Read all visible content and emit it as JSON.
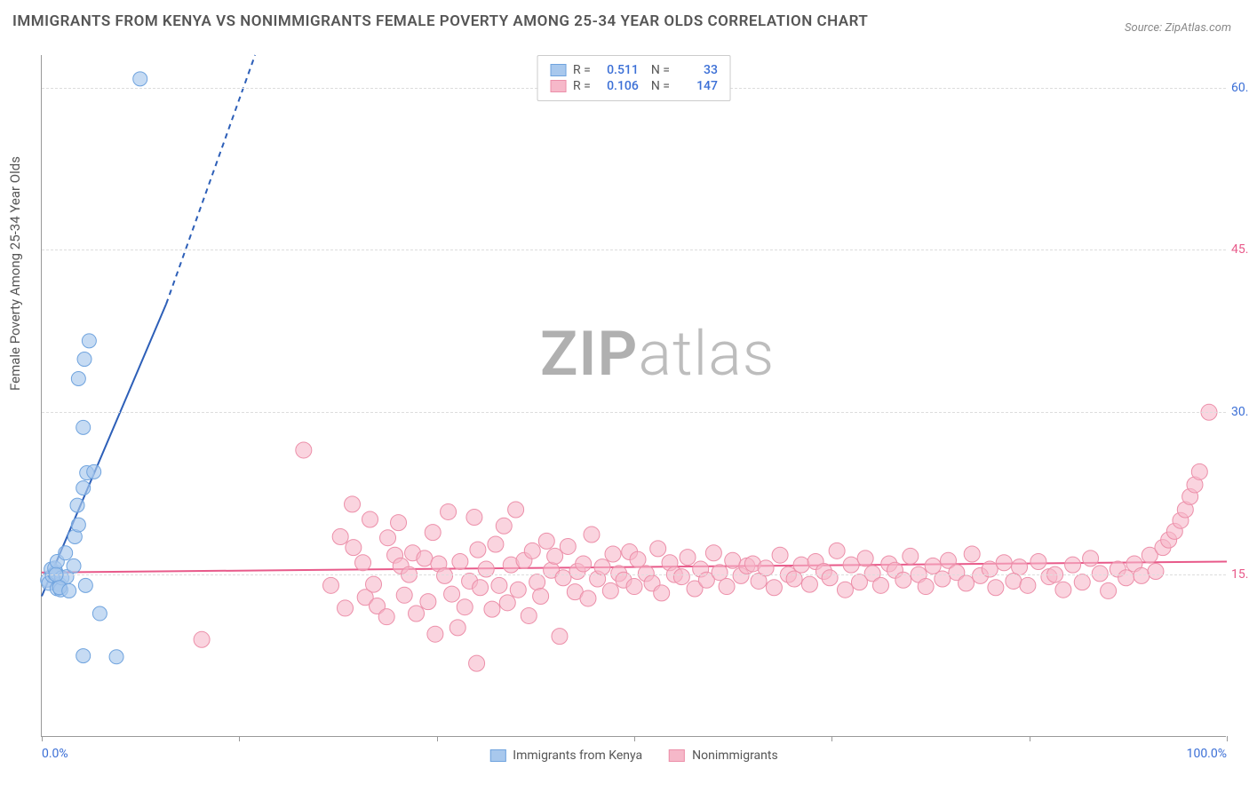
{
  "title": "IMMIGRANTS FROM KENYA VS NONIMMIGRANTS FEMALE POVERTY AMONG 25-34 YEAR OLDS CORRELATION CHART",
  "source_label": "Source:",
  "source_name": "ZipAtlas.com",
  "ylabel": "Female Poverty Among 25-34 Year Olds",
  "watermark_part1": "ZIP",
  "watermark_part2": "atlas",
  "chart": {
    "type": "scatter",
    "xlim": [
      0,
      100
    ],
    "ylim": [
      0,
      63
    ],
    "x_ticks": [
      0,
      16.67,
      33.33,
      50,
      66.67,
      83.33,
      100
    ],
    "x_tick_labels": {
      "0": "0.0%",
      "100": "100.0%"
    },
    "y_ticks": [
      15,
      30,
      45,
      60
    ],
    "y_tick_labels": [
      "15.0%",
      "30.0%",
      "45.0%",
      "60.0%"
    ],
    "grid_color": "#dddddd",
    "background": "#ffffff",
    "axis_color": "#999999",
    "xlabel_color": "#3b6fd6",
    "ylabel_blue": "#3b6fd6",
    "ylabel_pink": "#e85a8a"
  },
  "series": [
    {
      "name": "Immigrants from Kenya",
      "color_fill": "#a8c8ed",
      "color_stroke": "#6fa3de",
      "marker_r": 8,
      "marker_opacity": 0.65,
      "R": "0.511",
      "N": "33",
      "trend": {
        "x1": 0,
        "y1": 13,
        "x2": 10.5,
        "y2": 40,
        "solid_until_x": 10.5,
        "dash_to_x": 18,
        "dash_to_y": 63,
        "color": "#2d5fb8",
        "width": 2
      },
      "points": [
        [
          0.5,
          14.5
        ],
        [
          0.6,
          14.2
        ],
        [
          0.9,
          14.9
        ],
        [
          1.1,
          15.1
        ],
        [
          0.8,
          15.5
        ],
        [
          1.2,
          15.2
        ],
        [
          1.1,
          15.6
        ],
        [
          1.5,
          14.1
        ],
        [
          1.3,
          16.2
        ],
        [
          1.3,
          13.7
        ],
        [
          1.6,
          13.6
        ],
        [
          1.7,
          14.7
        ],
        [
          2.1,
          14.8
        ],
        [
          1.2,
          15.0
        ],
        [
          1.5,
          13.8
        ],
        [
          2.3,
          13.5
        ],
        [
          2.0,
          17.0
        ],
        [
          2.7,
          15.8
        ],
        [
          2.8,
          18.5
        ],
        [
          3.1,
          19.6
        ],
        [
          3.0,
          21.4
        ],
        [
          3.7,
          14.0
        ],
        [
          3.5,
          23.0
        ],
        [
          3.5,
          28.6
        ],
        [
          3.8,
          24.4
        ],
        [
          3.1,
          33.1
        ],
        [
          3.6,
          34.9
        ],
        [
          4.0,
          36.6
        ],
        [
          4.4,
          24.5
        ],
        [
          4.9,
          11.4
        ],
        [
          6.3,
          7.4
        ],
        [
          3.5,
          7.5
        ],
        [
          8.3,
          60.8
        ]
      ]
    },
    {
      "name": "Nonimmigrants",
      "color_fill": "#f6b8c9",
      "color_stroke": "#ec8fa9",
      "marker_r": 9,
      "marker_opacity": 0.6,
      "R": "0.106",
      "N": "147",
      "trend": {
        "x1": 0,
        "y1": 15.2,
        "x2": 100,
        "y2": 16.2,
        "color": "#e85a8a",
        "width": 2
      },
      "points": [
        [
          13.5,
          9.0
        ],
        [
          22.1,
          26.5
        ],
        [
          24.4,
          14.0
        ],
        [
          25.2,
          18.5
        ],
        [
          25.6,
          11.9
        ],
        [
          26.2,
          21.5
        ],
        [
          26.3,
          17.5
        ],
        [
          27.1,
          16.1
        ],
        [
          27.3,
          12.9
        ],
        [
          27.7,
          20.1
        ],
        [
          28.0,
          14.1
        ],
        [
          28.3,
          12.1
        ],
        [
          29.1,
          11.1
        ],
        [
          29.2,
          18.4
        ],
        [
          29.8,
          16.8
        ],
        [
          30.1,
          19.8
        ],
        [
          30.3,
          15.8
        ],
        [
          30.6,
          13.1
        ],
        [
          31.0,
          15.0
        ],
        [
          31.3,
          17.0
        ],
        [
          31.6,
          11.4
        ],
        [
          32.3,
          16.5
        ],
        [
          32.6,
          12.5
        ],
        [
          33.0,
          18.9
        ],
        [
          33.2,
          9.5
        ],
        [
          33.5,
          16.0
        ],
        [
          34.0,
          14.9
        ],
        [
          34.3,
          20.8
        ],
        [
          34.6,
          13.2
        ],
        [
          35.1,
          10.1
        ],
        [
          35.3,
          16.2
        ],
        [
          35.7,
          12.0
        ],
        [
          36.1,
          14.4
        ],
        [
          36.5,
          20.3
        ],
        [
          36.7,
          6.8
        ],
        [
          36.8,
          17.3
        ],
        [
          37.0,
          13.8
        ],
        [
          37.5,
          15.5
        ],
        [
          38.0,
          11.8
        ],
        [
          38.3,
          17.8
        ],
        [
          38.6,
          14.0
        ],
        [
          39.0,
          19.5
        ],
        [
          39.3,
          12.4
        ],
        [
          39.6,
          15.9
        ],
        [
          40.0,
          21.0
        ],
        [
          40.2,
          13.6
        ],
        [
          40.7,
          16.3
        ],
        [
          41.1,
          11.2
        ],
        [
          41.4,
          17.2
        ],
        [
          41.8,
          14.3
        ],
        [
          42.1,
          13.0
        ],
        [
          42.6,
          18.1
        ],
        [
          43.0,
          15.4
        ],
        [
          43.3,
          16.7
        ],
        [
          43.7,
          9.3
        ],
        [
          44.0,
          14.7
        ],
        [
          44.4,
          17.6
        ],
        [
          45.0,
          13.4
        ],
        [
          45.2,
          15.3
        ],
        [
          45.7,
          16.0
        ],
        [
          46.1,
          12.8
        ],
        [
          46.4,
          18.7
        ],
        [
          46.9,
          14.6
        ],
        [
          47.3,
          15.7
        ],
        [
          48.0,
          13.5
        ],
        [
          48.2,
          16.9
        ],
        [
          48.7,
          15.1
        ],
        [
          49.1,
          14.5
        ],
        [
          49.6,
          17.1
        ],
        [
          50.0,
          13.9
        ],
        [
          50.3,
          16.4
        ],
        [
          51.0,
          15.1
        ],
        [
          51.5,
          14.2
        ],
        [
          52.0,
          17.4
        ],
        [
          52.3,
          13.3
        ],
        [
          53.0,
          16.1
        ],
        [
          53.4,
          15.0
        ],
        [
          54.0,
          14.8
        ],
        [
          54.5,
          16.6
        ],
        [
          55.1,
          13.7
        ],
        [
          55.6,
          15.5
        ],
        [
          56.1,
          14.5
        ],
        [
          56.7,
          17.0
        ],
        [
          57.2,
          15.2
        ],
        [
          57.8,
          13.9
        ],
        [
          58.3,
          16.3
        ],
        [
          59.0,
          14.9
        ],
        [
          59.5,
          15.8
        ],
        [
          60.0,
          16.0
        ],
        [
          60.5,
          14.4
        ],
        [
          61.1,
          15.6
        ],
        [
          61.8,
          13.8
        ],
        [
          62.3,
          16.8
        ],
        [
          63.0,
          15.0
        ],
        [
          63.5,
          14.6
        ],
        [
          64.1,
          15.9
        ],
        [
          64.8,
          14.1
        ],
        [
          65.3,
          16.2
        ],
        [
          66.0,
          15.3
        ],
        [
          66.5,
          14.7
        ],
        [
          67.1,
          17.2
        ],
        [
          67.8,
          13.6
        ],
        [
          68.3,
          15.9
        ],
        [
          69.0,
          14.3
        ],
        [
          69.5,
          16.5
        ],
        [
          70.1,
          15.1
        ],
        [
          70.8,
          14.0
        ],
        [
          71.5,
          16.0
        ],
        [
          72.0,
          15.4
        ],
        [
          72.7,
          14.5
        ],
        [
          73.3,
          16.7
        ],
        [
          74.0,
          15.0
        ],
        [
          74.6,
          13.9
        ],
        [
          75.2,
          15.8
        ],
        [
          76.0,
          14.6
        ],
        [
          76.5,
          16.3
        ],
        [
          77.2,
          15.2
        ],
        [
          78.0,
          14.2
        ],
        [
          78.5,
          16.9
        ],
        [
          79.2,
          14.9
        ],
        [
          80.0,
          15.5
        ],
        [
          80.5,
          13.8
        ],
        [
          81.2,
          16.1
        ],
        [
          82.0,
          14.4
        ],
        [
          82.5,
          15.7
        ],
        [
          83.2,
          14.0
        ],
        [
          84.1,
          16.2
        ],
        [
          85.0,
          14.8
        ],
        [
          85.5,
          15.0
        ],
        [
          86.2,
          13.6
        ],
        [
          87.0,
          15.9
        ],
        [
          87.8,
          14.3
        ],
        [
          88.5,
          16.5
        ],
        [
          89.3,
          15.1
        ],
        [
          90.0,
          13.5
        ],
        [
          90.8,
          15.5
        ],
        [
          91.5,
          14.7
        ],
        [
          92.2,
          16.0
        ],
        [
          92.8,
          14.9
        ],
        [
          93.5,
          16.8
        ],
        [
          94.0,
          15.3
        ],
        [
          94.6,
          17.5
        ],
        [
          95.1,
          18.2
        ],
        [
          95.6,
          19.0
        ],
        [
          96.1,
          20.0
        ],
        [
          96.5,
          21.0
        ],
        [
          96.9,
          22.2
        ],
        [
          97.3,
          23.3
        ],
        [
          97.7,
          24.5
        ],
        [
          98.5,
          30.0
        ]
      ]
    }
  ],
  "legend_labels": {
    "R": "R =",
    "N": "N ="
  }
}
